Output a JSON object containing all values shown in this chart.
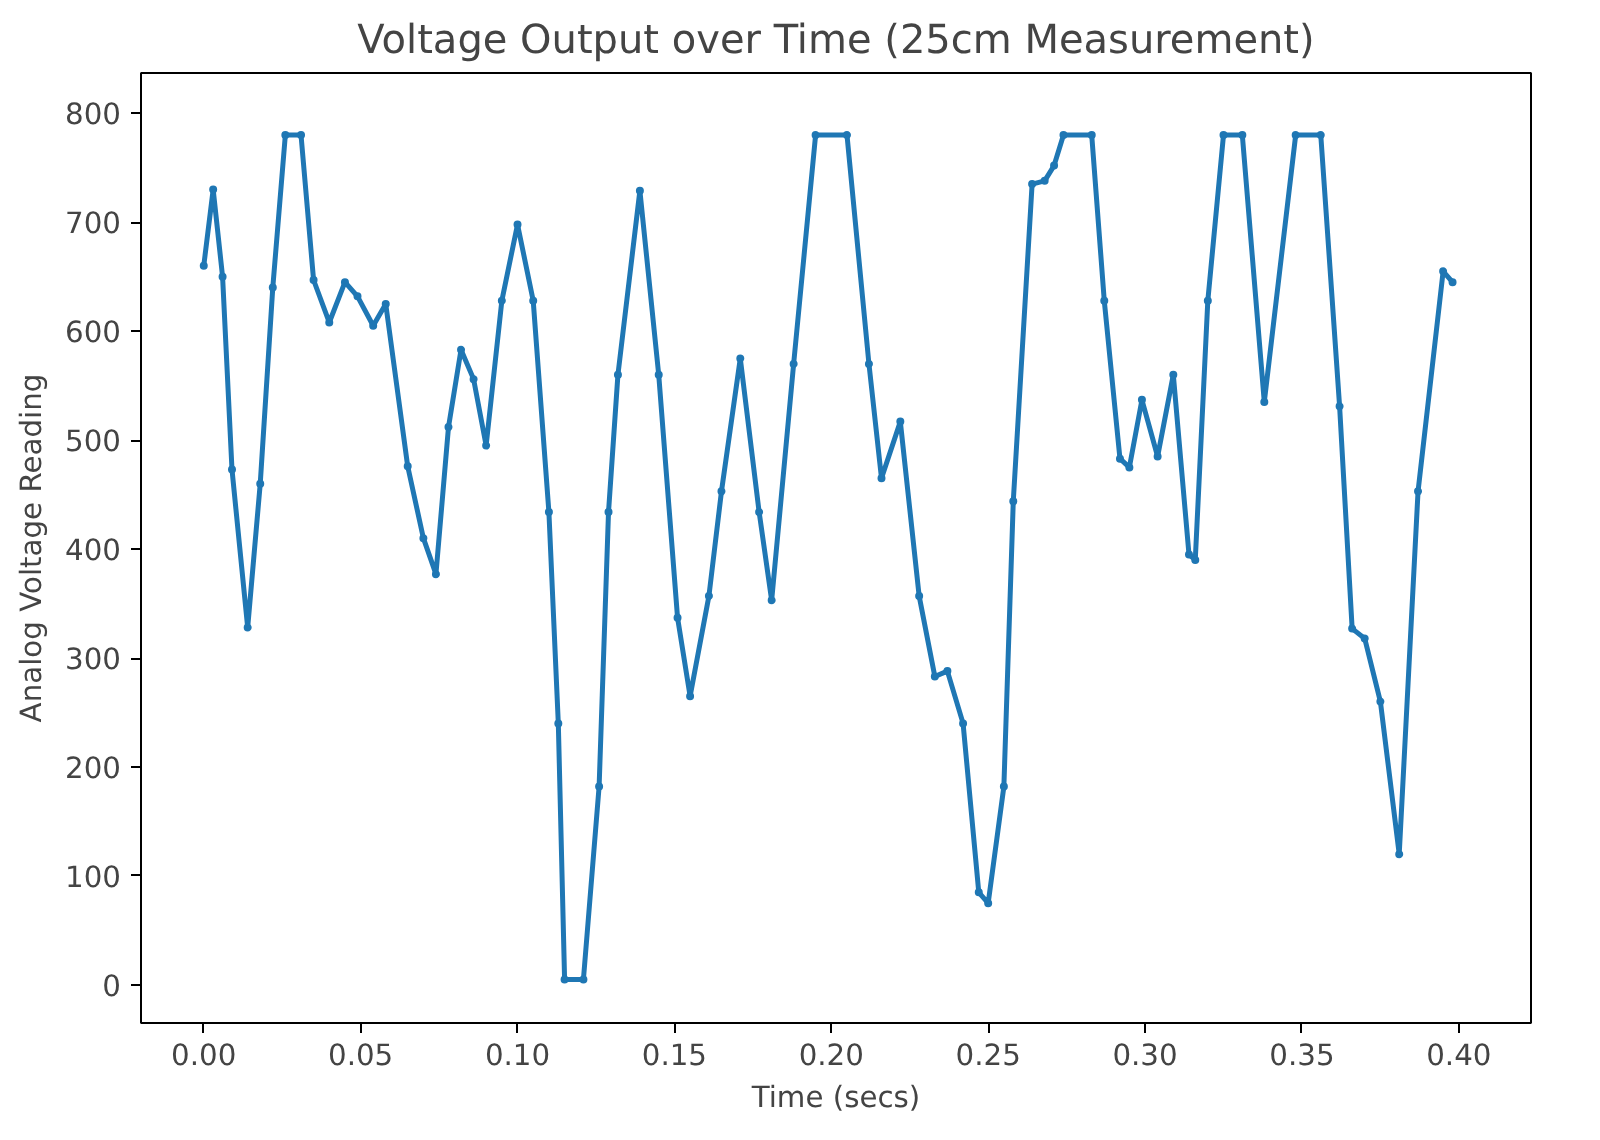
{
  "chart_data": {
    "type": "line",
    "title": "Voltage Output over Time (25cm Measurement)",
    "xlabel": "Time (secs)",
    "ylabel": "Analog Voltage Reading",
    "xlim": [
      -0.02,
      0.423
    ],
    "ylim": [
      -35,
      837
    ],
    "xticks": [
      {
        "value": 0,
        "label": "0.00"
      },
      {
        "value": 0.05,
        "label": "0.05"
      },
      {
        "value": 0.1,
        "label": "0.10"
      },
      {
        "value": 0.15,
        "label": "0.15"
      },
      {
        "value": 0.2,
        "label": "0.20"
      },
      {
        "value": 0.25,
        "label": "0.25"
      },
      {
        "value": 0.3,
        "label": "0.30"
      },
      {
        "value": 0.35,
        "label": "0.35"
      },
      {
        "value": 0.4,
        "label": "0.40"
      }
    ],
    "yticks": [
      0,
      100,
      200,
      300,
      400,
      500,
      600,
      700,
      800
    ],
    "grid": false,
    "marker": "circle",
    "line_style": "solid",
    "series": [
      {
        "color": "#1f77b4",
        "x": [
          0,
          0.003,
          0.006,
          0.009,
          0.014,
          0.018,
          0.022,
          0.026,
          0.031,
          0.035,
          0.04,
          0.045,
          0.049,
          0.054,
          0.058,
          0.065,
          0.07,
          0.074,
          0.078,
          0.082,
          0.086,
          0.09,
          0.095,
          0.1,
          0.105,
          0.11,
          0.113,
          0.115,
          0.121,
          0.126,
          0.129,
          0.132,
          0.139,
          0.145,
          0.151,
          0.155,
          0.161,
          0.165,
          0.171,
          0.177,
          0.181,
          0.188,
          0.195,
          0.205,
          0.212,
          0.216,
          0.222,
          0.228,
          0.233,
          0.237,
          0.242,
          0.247,
          0.25,
          0.255,
          0.258,
          0.264,
          0.268,
          0.271,
          0.274,
          0.283,
          0.287,
          0.292,
          0.295,
          0.299,
          0.304,
          0.309,
          0.314,
          0.316,
          0.32,
          0.325,
          0.331,
          0.338,
          0.348,
          0.356,
          0.362,
          0.366,
          0.37,
          0.375,
          0.381,
          0.387,
          0.395,
          0.398
        ],
        "values": [
          660,
          730,
          650,
          473,
          328,
          460,
          640,
          780,
          780,
          647,
          608,
          645,
          632,
          605,
          625,
          476,
          410,
          377,
          512,
          583,
          556,
          495,
          628,
          698,
          628,
          434,
          240,
          5,
          5,
          182,
          434,
          560,
          729,
          560,
          337,
          265,
          357,
          453,
          575,
          434,
          353,
          570,
          780,
          780,
          570,
          465,
          517,
          357,
          283,
          288,
          240,
          85,
          75,
          182,
          444,
          735,
          738,
          752,
          780,
          780,
          628,
          483,
          475,
          537,
          485,
          560,
          395,
          390,
          628,
          780,
          780,
          535,
          780,
          780,
          531,
          327,
          318,
          260,
          120,
          453,
          655,
          645
        ]
      }
    ]
  }
}
